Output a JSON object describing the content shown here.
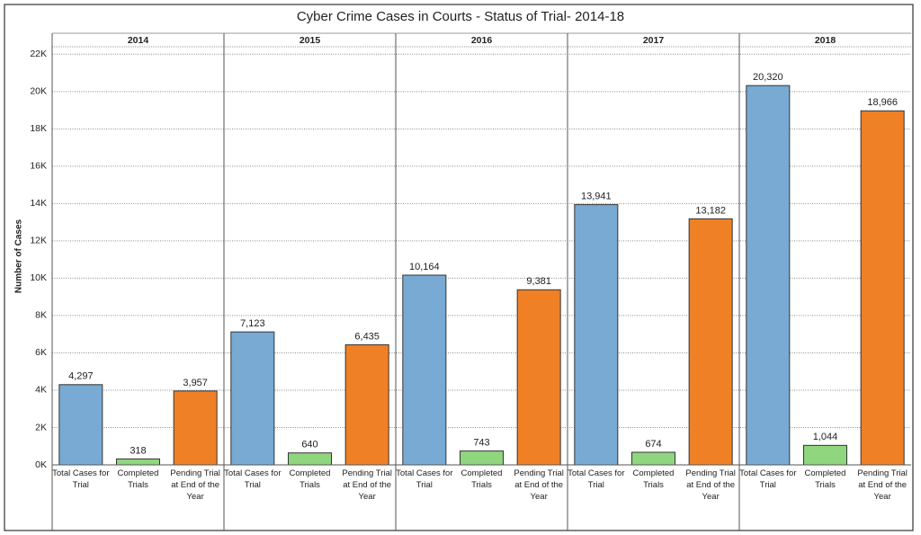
{
  "chart_data": {
    "type": "bar",
    "title": "Cyber Crime Cases in Courts - Status of Trial- 2014-18",
    "y_label": "Number of Cases",
    "panels": [
      "2014",
      "2015",
      "2016",
      "2017",
      "2018"
    ],
    "series": [
      {
        "name": "Total Cases for Trial",
        "color": "#78aad4",
        "values": [
          4297,
          7123,
          10164,
          13941,
          20320
        ],
        "value_labels": [
          "4,297",
          "7,123",
          "10,164",
          "13,941",
          "20,320"
        ]
      },
      {
        "name": "Completed Trials",
        "color": "#8fd67e",
        "values": [
          318,
          640,
          743,
          674,
          1044
        ],
        "value_labels": [
          "318",
          "640",
          "743",
          "674",
          "1,044"
        ]
      },
      {
        "name": "Pending Trial at End of the Year",
        "color": "#f08025",
        "values": [
          3957,
          6435,
          9381,
          13182,
          18966
        ],
        "value_labels": [
          "3,957",
          "6,435",
          "9,381",
          "13,182",
          "18,966"
        ]
      }
    ],
    "ylim": [
      0,
      22400
    ],
    "yticks": [
      {
        "value": 0,
        "label": "0K"
      },
      {
        "value": 2000,
        "label": "2K"
      },
      {
        "value": 4000,
        "label": "4K"
      },
      {
        "value": 6000,
        "label": "6K"
      },
      {
        "value": 8000,
        "label": "8K"
      },
      {
        "value": 10000,
        "label": "10K"
      },
      {
        "value": 12000,
        "label": "12K"
      },
      {
        "value": 14000,
        "label": "14K"
      },
      {
        "value": 16000,
        "label": "16K"
      },
      {
        "value": 18000,
        "label": "18K"
      },
      {
        "value": 20000,
        "label": "20K"
      },
      {
        "value": 22000,
        "label": "22K"
      }
    ],
    "grid": true
  }
}
